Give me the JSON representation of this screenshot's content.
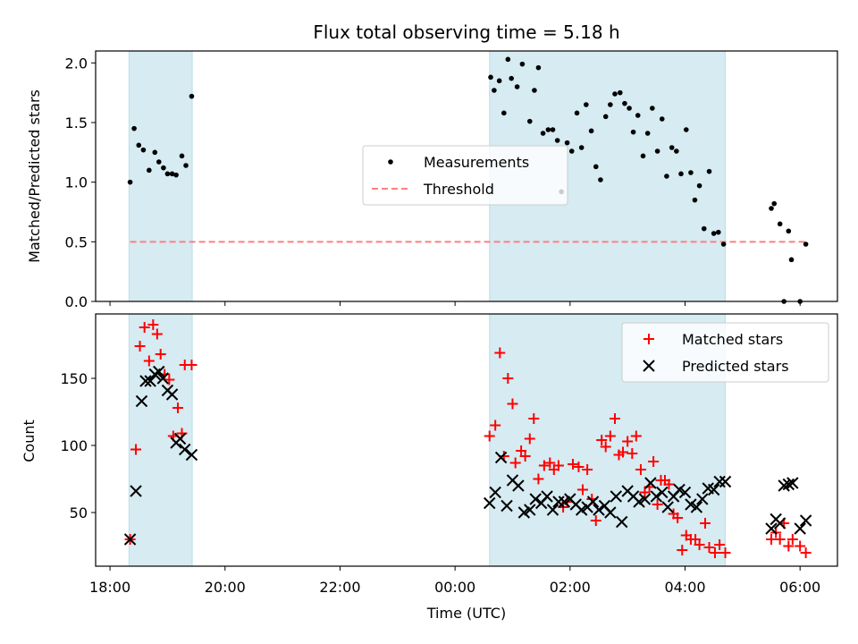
{
  "chart_data": [
    {
      "type": "scatter",
      "title": "Flux total observing time = 5.18 h",
      "xlabel": "",
      "ylabel": "Matched/Predicted stars",
      "x_axis": "hours since 18:00 UTC",
      "ylim": [
        0,
        2.1
      ],
      "yticks": [
        "0.0",
        "0.5",
        "1.0",
        "1.5",
        "2.0"
      ],
      "threshold": 0.5,
      "legend": {
        "placement": "center",
        "entries": [
          "Measurements",
          "Threshold"
        ]
      },
      "shaded_intervals": [
        [
          0.33,
          1.43
        ],
        [
          6.6,
          10.7
        ]
      ],
      "series": [
        {
          "name": "Measurements",
          "x": [
            0.35,
            0.42,
            0.5,
            0.58,
            0.68,
            0.78,
            0.85,
            0.93,
            1.0,
            1.08,
            1.15,
            1.25,
            1.32,
            1.42,
            6.62,
            6.68,
            6.77,
            6.85,
            6.92,
            6.98,
            7.08,
            7.17,
            7.3,
            7.38,
            7.45,
            7.53,
            7.62,
            7.7,
            7.78,
            7.85,
            7.95,
            8.03,
            8.12,
            8.2,
            8.28,
            8.37,
            8.45,
            8.53,
            8.62,
            8.7,
            8.78,
            8.87,
            8.95,
            9.03,
            9.1,
            9.18,
            9.27,
            9.35,
            9.43,
            9.52,
            9.6,
            9.68,
            9.77,
            9.85,
            9.93,
            10.02,
            10.1,
            10.17,
            10.25,
            10.33,
            10.42,
            10.5,
            10.58,
            10.67,
            11.5,
            11.55,
            11.65,
            11.72,
            11.8,
            11.85,
            12.0,
            12.1
          ],
          "y": [
            1.0,
            1.45,
            1.31,
            1.27,
            1.1,
            1.25,
            1.17,
            1.12,
            1.07,
            1.07,
            1.06,
            1.22,
            1.14,
            1.72,
            1.88,
            1.77,
            1.85,
            1.58,
            2.03,
            1.87,
            1.8,
            1.99,
            1.51,
            1.77,
            1.96,
            1.41,
            1.44,
            1.44,
            1.35,
            0.92,
            1.33,
            1.26,
            1.58,
            1.29,
            1.65,
            1.43,
            1.13,
            1.02,
            1.55,
            1.65,
            1.74,
            1.75,
            1.66,
            1.62,
            1.42,
            1.56,
            1.22,
            1.41,
            1.62,
            1.26,
            1.53,
            1.05,
            1.29,
            1.26,
            1.07,
            1.44,
            1.08,
            0.85,
            0.97,
            0.61,
            1.09,
            0.57,
            0.58,
            0.48,
            0.78,
            0.82,
            0.65,
            0.0,
            0.59,
            0.35,
            0.0,
            0.48
          ]
        }
      ]
    },
    {
      "type": "scatter",
      "title": "",
      "xlabel": "Time (UTC)",
      "ylabel": "Count",
      "ylim": [
        10,
        198
      ],
      "yticks": [
        "50",
        "100",
        "150"
      ],
      "xticks": [
        "18:00",
        "20:00",
        "22:00",
        "00:00",
        "02:00",
        "04:00",
        "06:00"
      ],
      "legend": {
        "placement": "top-right",
        "entries": [
          "Matched stars",
          "Predicted stars"
        ]
      },
      "shaded_intervals": [
        [
          0.33,
          1.43
        ],
        [
          6.6,
          10.7
        ]
      ],
      "series": [
        {
          "name": "Matched stars",
          "x": [
            0.35,
            0.45,
            0.52,
            0.6,
            0.68,
            0.75,
            0.82,
            0.88,
            0.95,
            1.03,
            1.1,
            1.18,
            1.25,
            1.3,
            1.42,
            6.6,
            6.7,
            6.78,
            6.85,
            6.92,
            7.0,
            7.05,
            7.15,
            7.22,
            7.3,
            7.37,
            7.45,
            7.55,
            7.65,
            7.72,
            7.8,
            7.88,
            7.95,
            8.05,
            8.15,
            8.22,
            8.3,
            8.38,
            8.45,
            8.55,
            8.62,
            8.7,
            8.78,
            8.85,
            8.92,
            9.0,
            9.08,
            9.15,
            9.23,
            9.3,
            9.38,
            9.45,
            9.52,
            9.58,
            9.65,
            9.72,
            9.8,
            9.87,
            9.95,
            10.02,
            10.1,
            10.18,
            10.25,
            10.35,
            10.42,
            10.52,
            10.6,
            10.7,
            11.5,
            11.58,
            11.65,
            11.72,
            11.8,
            11.87,
            12.0,
            12.1
          ],
          "y": [
            30,
            97,
            174,
            188,
            163,
            190,
            183,
            168,
            153,
            149,
            107,
            128,
            109,
            160,
            160,
            107,
            115,
            169,
            92,
            150,
            131,
            87,
            96,
            92,
            105,
            120,
            75,
            85,
            87,
            82,
            85,
            54,
            58,
            86,
            84,
            67,
            82,
            60,
            44,
            104,
            99,
            107,
            120,
            93,
            95,
            103,
            94,
            107,
            82,
            65,
            69,
            88,
            56,
            74,
            74,
            71,
            49,
            46,
            22,
            33,
            30,
            30,
            26,
            42,
            24,
            20,
            26,
            20,
            30,
            35,
            30,
            42,
            25,
            30,
            25,
            20
          ]
        },
        {
          "name": "Predicted stars",
          "x": [
            0.35,
            0.45,
            0.55,
            0.62,
            0.7,
            0.78,
            0.85,
            0.92,
            1.0,
            1.08,
            1.15,
            1.22,
            1.3,
            1.42,
            6.6,
            6.7,
            6.8,
            6.9,
            7.0,
            7.1,
            7.2,
            7.3,
            7.4,
            7.5,
            7.6,
            7.7,
            7.8,
            7.9,
            8.0,
            8.1,
            8.2,
            8.3,
            8.4,
            8.5,
            8.6,
            8.7,
            8.8,
            8.9,
            9.0,
            9.1,
            9.2,
            9.3,
            9.4,
            9.5,
            9.6,
            9.7,
            9.8,
            9.9,
            10.0,
            10.1,
            10.2,
            10.3,
            10.4,
            10.5,
            10.6,
            10.7,
            11.5,
            11.58,
            11.65,
            11.72,
            11.8,
            11.87,
            12.0,
            12.1
          ],
          "y": [
            30,
            66,
            133,
            148,
            148,
            153,
            155,
            150,
            141,
            138,
            102,
            105,
            97,
            93,
            57,
            65,
            91,
            55,
            74,
            70,
            50,
            52,
            60,
            57,
            62,
            52,
            58,
            58,
            60,
            56,
            52,
            54,
            58,
            52,
            55,
            50,
            62,
            43,
            66,
            62,
            58,
            60,
            72,
            62,
            65,
            54,
            62,
            67,
            65,
            56,
            54,
            60,
            68,
            67,
            73,
            73,
            38,
            45,
            42,
            70,
            71,
            72,
            38,
            44
          ]
        }
      ]
    }
  ]
}
